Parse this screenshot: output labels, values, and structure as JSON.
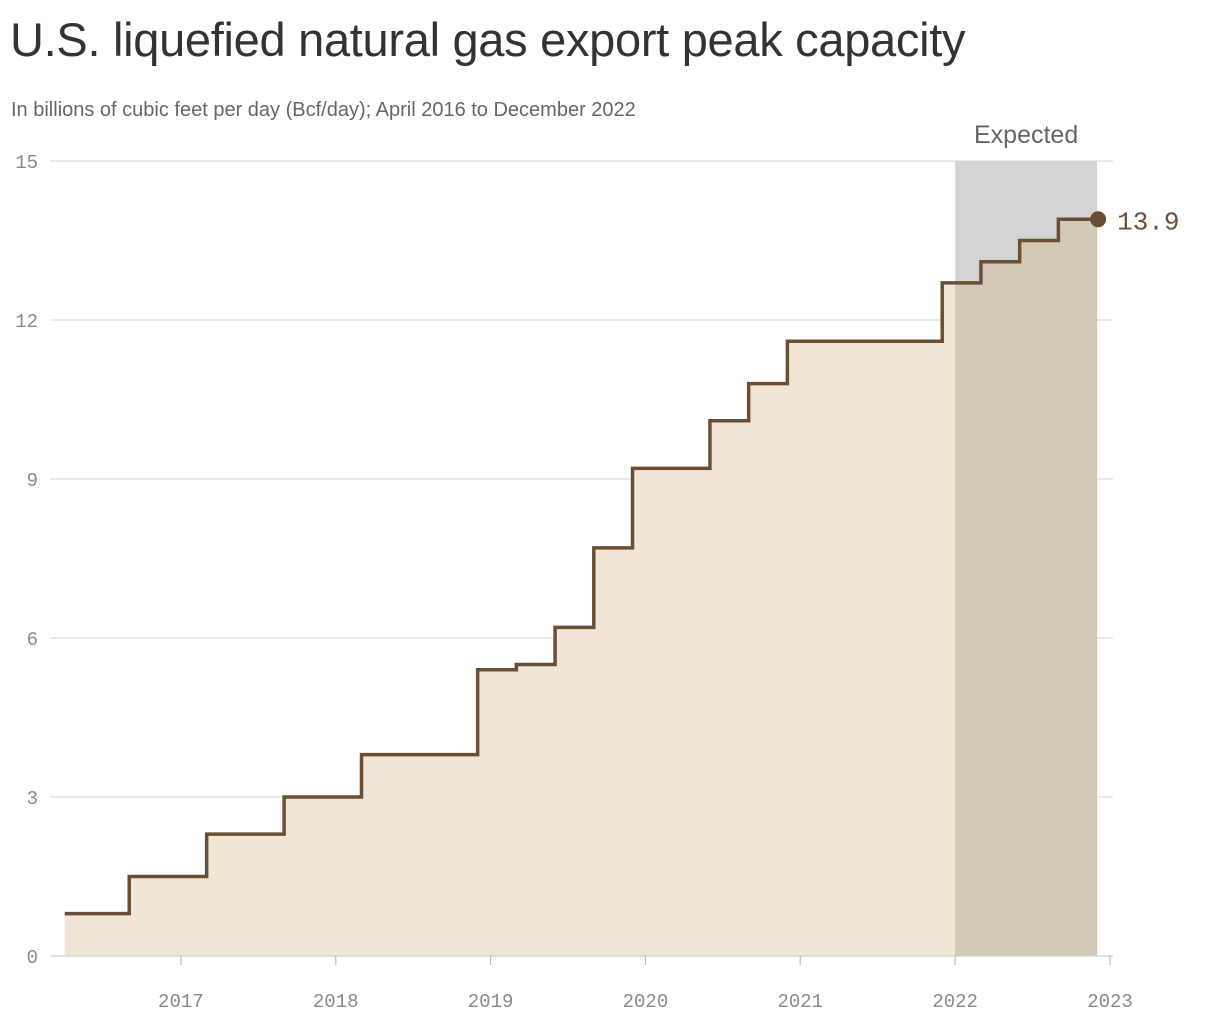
{
  "chart_data": {
    "type": "area",
    "title": "U.S. liquefied natural gas export peak capacity",
    "subtitle": "In billions of cubic feet per day (Bcf/day); April 2016 to December 2022",
    "step": true,
    "xlim": [
      "2016-01-01",
      "2023-01-01"
    ],
    "ylim": [
      0,
      15
    ],
    "y_ticks": [
      "0",
      "3",
      "6",
      "9",
      "12",
      "15"
    ],
    "x_ticks": [
      "2017",
      "2018",
      "2019",
      "2020",
      "2021",
      "2022",
      "2023"
    ],
    "grid": true,
    "shaded_region": {
      "label": "Expected",
      "start": "2022-01-01",
      "end": "2022-12-01"
    },
    "end_label": "13.9",
    "series": [
      {
        "x": [
          "2016-04-01",
          "2016-09-01",
          "2017-03-01",
          "2017-09-01",
          "2018-03-01",
          "2018-12-01",
          "2019-03-01",
          "2019-06-01",
          "2019-09-01",
          "2019-12-01",
          "2020-06-01",
          "2020-09-01",
          "2020-12-01",
          "2021-12-01",
          "2022-03-01",
          "2022-06-01",
          "2022-09-01",
          "2022-12-01"
        ],
        "y": [
          0.8,
          1.5,
          2.3,
          3.0,
          3.8,
          5.4,
          5.5,
          6.2,
          7.7,
          9.2,
          10.1,
          10.8,
          11.6,
          12.7,
          13.1,
          13.5,
          13.9,
          13.9
        ]
      }
    ],
    "colors": {
      "line": "#6b4f35",
      "fill": "#f1e6d6",
      "expected_band": "#d4d4d4",
      "expected_fill": "#d4c8b6",
      "grid": "#dddddd"
    }
  }
}
